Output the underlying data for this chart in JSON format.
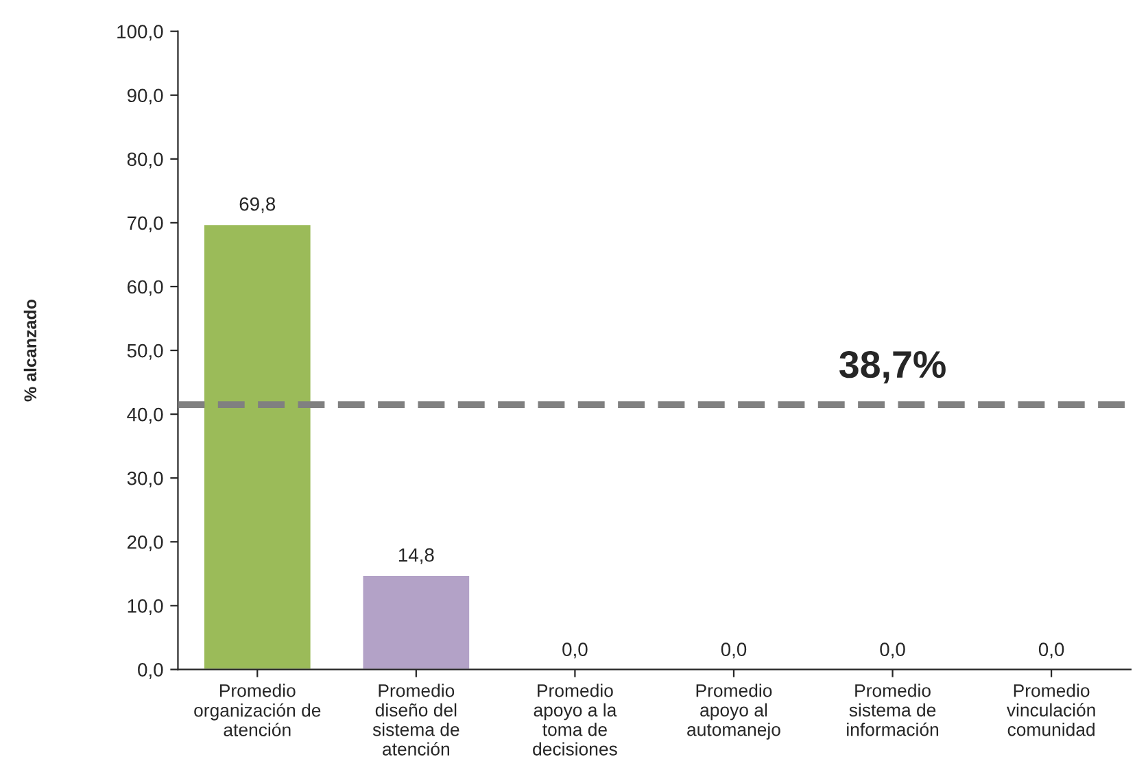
{
  "chart_data": {
    "type": "bar",
    "ylabel": "% alcanzado",
    "categories": [
      "Promedio\norganización de\natención",
      "Promedio\ndiseño del\nsistema de\natención",
      "Promedio\napoyo a la\ntoma de\ndecisiones",
      "Promedio\napoyo al\nautomanejo",
      "Promedio\nsistema de\ninformación",
      "Promedio\nvinculación\ncomunidad"
    ],
    "values": [
      69.8,
      14.8,
      0.0,
      0.0,
      0.0,
      0.0
    ],
    "colors": [
      "#9bbb59",
      "#b3a2c7",
      null,
      null,
      null,
      null
    ],
    "value_labels": [
      "69,8",
      "14,8",
      "0,0",
      "0,0",
      "0,0",
      "0,0"
    ],
    "ylim": [
      0,
      100
    ],
    "yticks": [
      {
        "value": 0,
        "label": "0,0"
      },
      {
        "value": 10,
        "label": "10,0"
      },
      {
        "value": 20,
        "label": "20,0"
      },
      {
        "value": 30,
        "label": "30,0"
      },
      {
        "value": 40,
        "label": "40,0"
      },
      {
        "value": 50,
        "label": "50,0"
      },
      {
        "value": 60,
        "label": "60,0"
      },
      {
        "value": 70,
        "label": "70,0"
      },
      {
        "value": 80,
        "label": "80,0"
      },
      {
        "value": 90,
        "label": "90,0"
      },
      {
        "value": 100,
        "label": "100,0"
      }
    ],
    "ref_lines": [
      {
        "axis": "y",
        "value": 41.5,
        "color": "#808080",
        "line_style": "dashed"
      }
    ],
    "annotations": [
      "38,7%"
    ],
    "grid": false,
    "legend": false
  }
}
